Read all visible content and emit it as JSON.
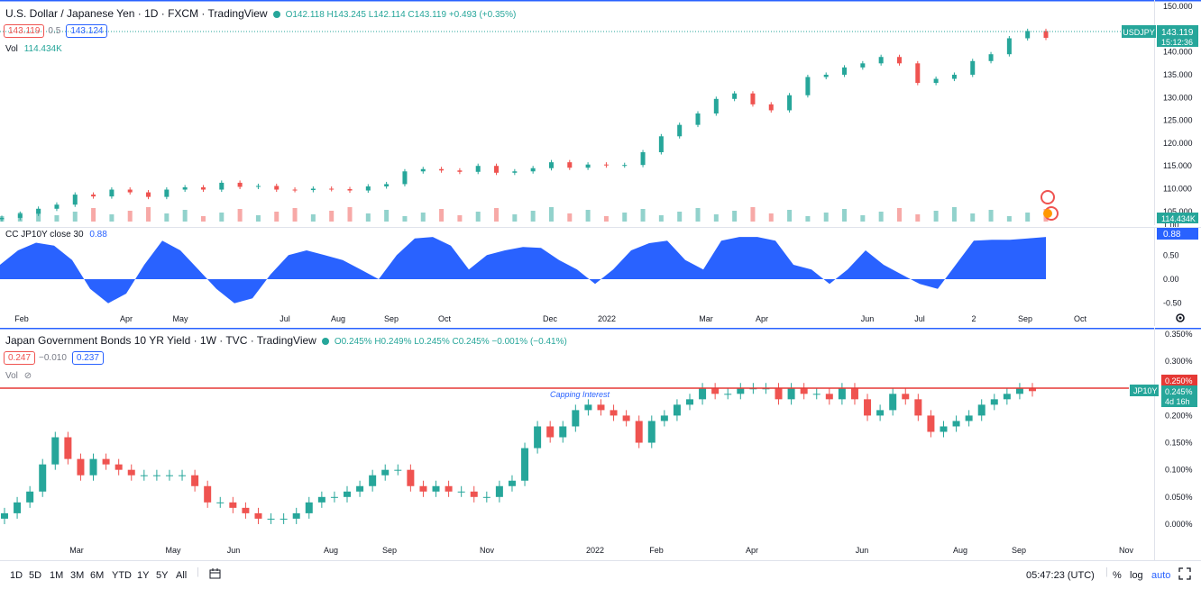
{
  "panel1": {
    "title": "U.S. Dollar / Japanese Yen · 1D · FXCM · TradingView",
    "ohlc": "O142.118 H143.245 L142.114 C143.119 +0.493 (+0.35%)",
    "bid": "143.119",
    "spread": "0.5",
    "ask": "143.124",
    "vol_label": "Vol",
    "vol_value": "114.434K",
    "price_ticks": [
      "150.000",
      "145.000",
      "140.000",
      "135.000",
      "130.000",
      "125.000",
      "120.000",
      "115.000",
      "110.000",
      "105.000",
      "1.00"
    ],
    "symbol_tag": "USDJPY",
    "last_price": "143.119",
    "countdown": "15:12:36",
    "vol_tag": "114.434K"
  },
  "panel2": {
    "title": "CC JP10Y close 30",
    "value": "0.88",
    "ticks": [
      "0.50",
      "0.00",
      "-0.50"
    ],
    "value_tag": "0.88"
  },
  "axis1": {
    "labels": [
      "Feb",
      "Apr",
      "May",
      "Jul",
      "Aug",
      "Sep",
      "Oct",
      "Dec",
      "2022",
      "Mar",
      "Apr",
      "Jun",
      "Jul",
      "2",
      "Sep",
      "Oct"
    ]
  },
  "panel3": {
    "title": "Japan Government Bonds 10 YR Yield · 1W · TVC · TradingView",
    "ohlc": "O0.245% H0.249% L0.245% C0.245% −0.001% (−0.41%)",
    "bid": "0.247",
    "change": "−0.010",
    "ask": "0.237",
    "vol_label": "Vol",
    "capping_label": "Capping Interest",
    "y_ticks": [
      "0.350%",
      "0.300%",
      "0.250%",
      "0.200%",
      "0.150%",
      "0.100%",
      "0.050%",
      "0.000%"
    ],
    "red_tag": "0.250%",
    "symbol_tag": "JP10Y",
    "last_price": "0.245%",
    "countdown": "4d 16h",
    "x_labels": [
      "Mar",
      "May",
      "Jun",
      "Aug",
      "Sep",
      "Nov",
      "2022",
      "Feb",
      "Apr",
      "Jun",
      "Aug",
      "Sep",
      "Nov"
    ]
  },
  "bottom": {
    "timeframes": [
      "1D",
      "5D",
      "1M",
      "3M",
      "6M",
      "YTD",
      "1Y",
      "5Y",
      "All"
    ],
    "clock": "05:47:23 (UTC)",
    "pct": "%",
    "log": "log",
    "auto": "auto"
  },
  "colors": {
    "up": "#26a69a",
    "down": "#ef5350",
    "blue": "#2962ff",
    "cap": "#e53935"
  },
  "chart_data": [
    {
      "type": "candlestick",
      "title": "U.S. Dollar / Japanese Yen · 1D · FXCM · TradingView",
      "series": [
        {
          "name": "USDJPY close (approx, sampled)",
          "values": [
            103.6,
            104.5,
            105.6,
            106.5,
            108.7,
            108.3,
            109.8,
            109.2,
            108.2,
            109.8,
            110.3,
            109.8,
            111.3,
            110.4,
            110.6,
            109.8,
            109.7,
            110.0,
            109.9,
            109.6,
            110.5,
            111.0,
            113.8,
            114.3,
            114.0,
            113.7,
            115.0,
            113.5,
            113.8,
            114.5,
            115.8,
            114.6,
            115.3,
            115.1,
            115.2,
            118.0,
            121.5,
            124.0,
            126.5,
            129.7,
            130.9,
            128.5,
            127.2,
            130.5,
            134.5,
            135.0,
            136.6,
            137.5,
            138.9,
            137.5,
            133.2,
            134.1,
            135.0,
            138.0,
            139.5,
            143.0,
            144.6,
            143.1
          ]
        }
      ],
      "ylim": [
        102,
        151
      ],
      "last": 143.119
    },
    {
      "type": "area",
      "title": "CC JP10Y close 30",
      "series": [
        {
          "name": "CC JP10Y close 30",
          "values": [
            0.3,
            0.6,
            0.76,
            0.7,
            0.4,
            -0.2,
            -0.5,
            -0.3,
            0.3,
            0.8,
            0.6,
            0.2,
            -0.2,
            -0.5,
            -0.4,
            0.1,
            0.5,
            0.6,
            0.5,
            0.4,
            0.2,
            0.0,
            0.5,
            0.85,
            0.88,
            0.7,
            0.2,
            0.5,
            0.6,
            0.67,
            0.65,
            0.4,
            0.2,
            -0.1,
            0.2,
            0.6,
            0.75,
            0.8,
            0.4,
            0.2,
            0.8,
            0.88,
            0.88,
            0.8,
            0.3,
            0.2,
            -0.1,
            0.2,
            0.6,
            0.3,
            0.1,
            -0.1,
            -0.2,
            0.3,
            0.8,
            0.82,
            0.82,
            0.85,
            0.88
          ]
        }
      ],
      "ylim": [
        -0.6,
        1.05
      ]
    },
    {
      "type": "candlestick",
      "title": "Japan Government Bonds 10 YR Yield · 1W · TVC · TradingView",
      "series": [
        {
          "name": "JP10Y weekly close (approx)",
          "values": [
            0.02,
            0.04,
            0.06,
            0.11,
            0.16,
            0.12,
            0.09,
            0.12,
            0.11,
            0.1,
            0.09,
            0.09,
            0.09,
            0.09,
            0.09,
            0.07,
            0.04,
            0.04,
            0.03,
            0.02,
            0.01,
            0.01,
            0.01,
            0.02,
            0.04,
            0.05,
            0.05,
            0.06,
            0.07,
            0.09,
            0.1,
            0.1,
            0.07,
            0.06,
            0.07,
            0.06,
            0.06,
            0.05,
            0.05,
            0.07,
            0.08,
            0.14,
            0.18,
            0.16,
            0.18,
            0.21,
            0.22,
            0.21,
            0.2,
            0.19,
            0.15,
            0.19,
            0.2,
            0.22,
            0.23,
            0.25,
            0.24,
            0.24,
            0.25,
            0.25,
            0.25,
            0.23,
            0.25,
            0.24,
            0.24,
            0.23,
            0.25,
            0.23,
            0.2,
            0.21,
            0.24,
            0.23,
            0.2,
            0.17,
            0.18,
            0.19,
            0.2,
            0.22,
            0.23,
            0.24,
            0.25,
            0.245
          ]
        }
      ],
      "ylim": [
        -0.02,
        0.355
      ],
      "reference_line": {
        "label": "Capping Interest",
        "value": 0.25
      }
    }
  ]
}
